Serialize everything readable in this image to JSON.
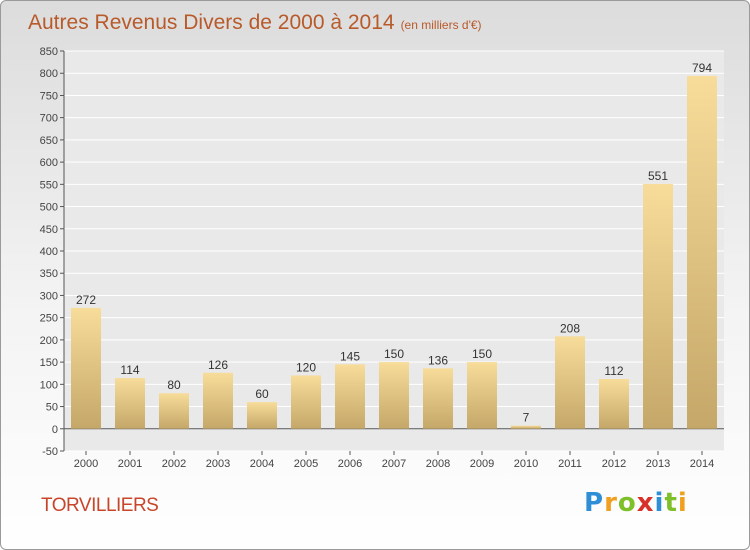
{
  "title": "Autres Revenus Divers de 2000 à 2014",
  "subtitle": "(en milliers d'€)",
  "place": "TORVILLIERS",
  "logo": "Proxiti",
  "colors": {
    "title": "#b85a2a",
    "place": "#c8452a",
    "bar_light": "#f7dc9a",
    "bar_dark": "#c5a869"
  },
  "chart_data": {
    "type": "bar",
    "title": "Autres Revenus Divers de 2000 à 2014",
    "subtitle": "(en milliers d'€)",
    "categories": [
      "2000",
      "2001",
      "2002",
      "2003",
      "2004",
      "2005",
      "2006",
      "2007",
      "2008",
      "2009",
      "2010",
      "2011",
      "2012",
      "2013",
      "2014"
    ],
    "values": [
      272,
      114,
      80,
      126,
      60,
      120,
      145,
      150,
      136,
      150,
      7,
      208,
      112,
      551,
      794
    ],
    "ylim": [
      -50,
      850
    ],
    "yticks": [
      -50,
      0,
      50,
      100,
      150,
      200,
      250,
      300,
      350,
      400,
      450,
      500,
      550,
      600,
      650,
      700,
      750,
      800,
      850
    ],
    "grid": true,
    "legend": "none"
  }
}
